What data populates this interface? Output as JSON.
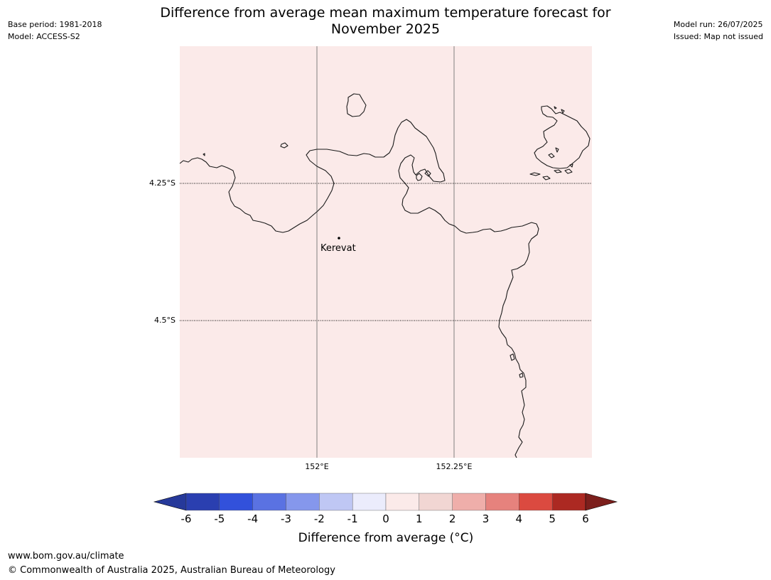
{
  "header": {
    "base_period": "Base period: 1981-2018",
    "model": "Model: ACCESS-S2",
    "model_run": "Model run: 26/07/2025",
    "issued": "Issued: Map not issued",
    "title_line1": "Difference from average mean maximum temperature forecast for",
    "title_line2": "November 2025"
  },
  "map": {
    "background_color": "#fbeae9",
    "lat_labels": [
      "4.25°S",
      "4.5°S"
    ],
    "lon_labels": [
      "152°E",
      "152.25°E"
    ],
    "place": {
      "name": "Kerevat"
    },
    "coastline_color": "#1a1a1a"
  },
  "colorbar": {
    "ticks": [
      "-6",
      "-5",
      "-4",
      "-3",
      "-2",
      "-1",
      "0",
      "1",
      "2",
      "3",
      "4",
      "5",
      "6"
    ],
    "colors": [
      "#26399a",
      "#2a3fb0",
      "#3251db",
      "#5a72e2",
      "#8597ec",
      "#bfc7f4",
      "#ebecfc",
      "#fbeae9",
      "#f1d6d3",
      "#efaeaa",
      "#e6827d",
      "#db4a40",
      "#ac2922",
      "#7c1f1c"
    ],
    "label": "Difference from average (°C)"
  },
  "footer": {
    "url": "www.bom.gov.au/climate",
    "copyright": "© Commonwealth of Australia 2025, Australian Bureau of Meteorology"
  }
}
